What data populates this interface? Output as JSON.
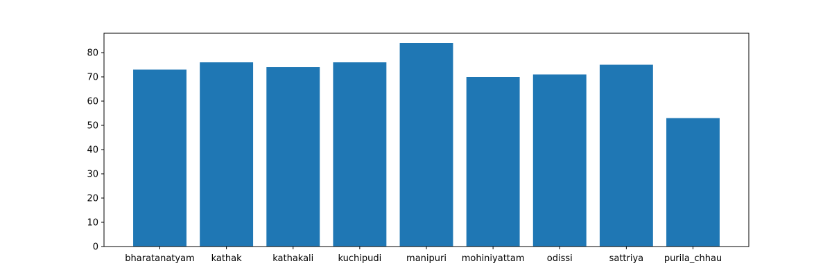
{
  "chart_data": {
    "type": "bar",
    "categories": [
      "bharatanatyam",
      "kathak",
      "kathakali",
      "kuchipudi",
      "manipuri",
      "mohiniyattam",
      "odissi",
      "sattriya",
      "purila_chhau"
    ],
    "values": [
      73,
      76,
      74,
      76,
      84,
      70,
      71,
      75,
      53
    ],
    "title": "",
    "xlabel": "",
    "ylabel": "",
    "ylim": [
      0,
      88
    ],
    "yticks": [
      0,
      10,
      20,
      30,
      40,
      50,
      60,
      70,
      80
    ],
    "grid": false,
    "bar_color": "#1f77b4"
  }
}
